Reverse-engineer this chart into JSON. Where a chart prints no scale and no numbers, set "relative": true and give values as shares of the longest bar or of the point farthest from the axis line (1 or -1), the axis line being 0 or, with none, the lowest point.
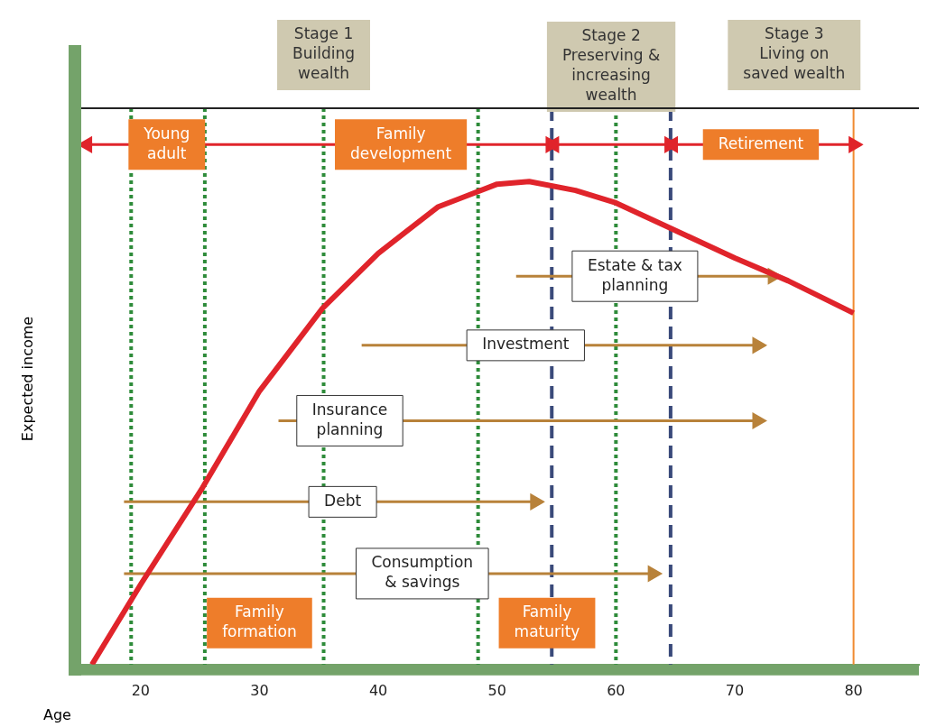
{
  "chart_data": {
    "type": "line",
    "relative": true,
    "xlabel": "Age",
    "ylabel": "Expected income",
    "xlim": [
      15,
      85.5
    ],
    "xticks": [
      20,
      30,
      40,
      50,
      60,
      70,
      80
    ],
    "grid": false,
    "legend": false,
    "marker": "none",
    "series": [
      {
        "type": "line",
        "color": "#e0242b",
        "x": [
          15.9,
          20,
          25.2,
          30,
          35.3,
          40,
          45,
          50,
          52.7,
          56.6,
          60,
          65,
          70,
          74.5,
          80
        ],
        "values": [
          0,
          0.154,
          0.34,
          0.526,
          0.685,
          0.791,
          0.88,
          0.924,
          0.929,
          0.912,
          0.888,
          0.835,
          0.782,
          0.738,
          0.676
        ]
      },
      {
        "type": "line",
        "color": "#e0242b",
        "marker": "triangle",
        "x": [
          15.5,
          54.5
        ],
        "values": [
          1,
          1
        ]
      },
      {
        "type": "line",
        "color": "#e0242b",
        "marker": "triangle",
        "x": [
          54.8,
          64.5
        ],
        "values": [
          1,
          1
        ]
      },
      {
        "type": "line",
        "color": "#e0242b",
        "marker": "triangle",
        "x": [
          64.8,
          80
        ],
        "values": [
          1,
          1
        ]
      },
      {
        "type": "line",
        "color": "#b8823a",
        "marker": "triangle",
        "x": [
          51.6,
          73.2
        ],
        "values": [
          0.747,
          0.747
        ]
      },
      {
        "type": "line",
        "color": "#b8823a",
        "marker": "triangle",
        "x": [
          38.6,
          71.9
        ],
        "values": [
          0.614,
          0.614
        ]
      },
      {
        "type": "line",
        "color": "#b8823a",
        "marker": "triangle",
        "x": [
          31.6,
          71.9
        ],
        "values": [
          0.469,
          0.469
        ]
      },
      {
        "type": "line",
        "color": "#b8823a",
        "marker": "triangle",
        "x": [
          18.6,
          53.2
        ],
        "values": [
          0.313,
          0.313
        ]
      },
      {
        "type": "line",
        "color": "#b8823a",
        "marker": "triangle",
        "x": [
          18.6,
          63.1
        ],
        "values": [
          0.175,
          0.175
        ]
      }
    ],
    "ref_lines": [
      {
        "axis": "x",
        "value": 19.2,
        "color": "#2e8b3a",
        "line_style": "dotted"
      },
      {
        "axis": "x",
        "value": 25.4,
        "color": "#2e8b3a",
        "line_style": "dotted"
      },
      {
        "axis": "x",
        "value": 35.4,
        "color": "#2e8b3a",
        "line_style": "dotted"
      },
      {
        "axis": "x",
        "value": 48.4,
        "color": "#2e8b3a",
        "line_style": "dotted"
      },
      {
        "axis": "x",
        "value": 60,
        "color": "#2e8b3a",
        "line_style": "dotted"
      },
      {
        "axis": "x",
        "value": 54.6,
        "color": "#3a4a7a",
        "line_style": "dashed"
      },
      {
        "axis": "x",
        "value": 64.6,
        "color": "#3a4a7a",
        "line_style": "dashed"
      },
      {
        "axis": "x",
        "value": 80,
        "color": "#f08a30",
        "line_style": "solid"
      }
    ],
    "annotations": [
      "Stage 1\nBuilding\nwealth",
      "Stage 2\nPreserving &\nincreasing\nwealth",
      "Stage 3\nLiving on\nsaved wealth",
      {
        "text": "Young\nadult",
        "x": 22.2,
        "y": 1
      },
      {
        "text": "Family\ndevelopment",
        "x": 41.9,
        "y": 1
      },
      {
        "text": "Retirement",
        "x": 72.2,
        "y": 1
      },
      {
        "text": "Estate & tax\nplanning",
        "x": 61.6,
        "y": 0.747
      },
      {
        "text": "Investment",
        "x": 52.4,
        "y": 0.614
      },
      {
        "text": "Insurance\nplanning",
        "x": 37.6,
        "y": 0.469
      },
      {
        "text": "Debt",
        "x": 37,
        "y": 0.313
      },
      {
        "text": "Consumption\n& savings",
        "x": 43.7,
        "y": 0.175
      },
      "Family\nformation",
      "Family\nmaturity"
    ]
  }
}
